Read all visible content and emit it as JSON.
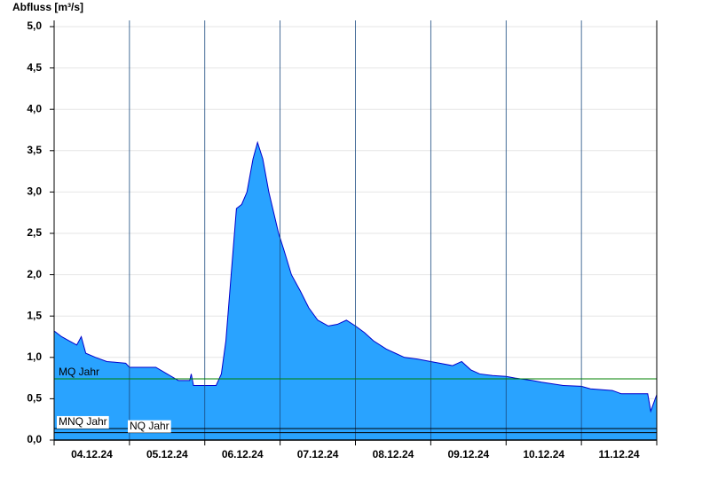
{
  "chart_data": {
    "type": "area",
    "y_label": "Abfluss [m³/s]",
    "x": [
      0,
      0.1,
      0.2,
      0.3,
      0.36,
      0.42,
      0.55,
      0.7,
      0.95,
      1.0,
      1.35,
      1.5,
      1.65,
      1.8,
      1.82,
      1.85,
      2.0,
      2.15,
      2.22,
      2.28,
      2.35,
      2.42,
      2.49,
      2.56,
      2.64,
      2.7,
      2.77,
      2.85,
      2.98,
      3.05,
      3.15,
      3.27,
      3.38,
      3.5,
      3.64,
      3.76,
      3.88,
      4.0,
      4.12,
      4.24,
      4.41,
      4.53,
      4.65,
      4.82,
      5.0,
      5.12,
      5.29,
      5.41,
      5.53,
      5.65,
      5.82,
      6.0,
      6.12,
      6.35,
      6.47,
      6.76,
      7.0,
      7.12,
      7.41,
      7.53,
      7.82,
      7.88,
      7.92,
      8.0
    ],
    "values": [
      1.32,
      1.25,
      1.2,
      1.15,
      1.25,
      1.05,
      1.0,
      0.95,
      0.93,
      0.88,
      0.88,
      0.8,
      0.72,
      0.72,
      0.8,
      0.66,
      0.66,
      0.66,
      0.8,
      1.2,
      2.0,
      2.8,
      2.85,
      3.0,
      3.4,
      3.6,
      3.4,
      3.0,
      2.5,
      2.3,
      2.0,
      1.8,
      1.6,
      1.45,
      1.38,
      1.4,
      1.45,
      1.38,
      1.3,
      1.2,
      1.1,
      1.05,
      1.0,
      0.98,
      0.95,
      0.93,
      0.9,
      0.95,
      0.85,
      0.8,
      0.78,
      0.77,
      0.75,
      0.72,
      0.7,
      0.66,
      0.65,
      0.62,
      0.6,
      0.56,
      0.56,
      0.56,
      0.35,
      0.55
    ],
    "color": "#29a3ff",
    "line_color": "#0000cc",
    "xlim": [
      0,
      8
    ],
    "xticks": [
      {
        "value": 0.5,
        "label": "04.12.24"
      },
      {
        "value": 1.5,
        "label": "05.12.24"
      },
      {
        "value": 2.5,
        "label": "06.12.24"
      },
      {
        "value": 3.5,
        "label": "07.12.24"
      },
      {
        "value": 4.5,
        "label": "08.12.24"
      },
      {
        "value": 5.5,
        "label": "09.12.24"
      },
      {
        "value": 6.5,
        "label": "10.12.24"
      },
      {
        "value": 7.5,
        "label": "11.12.24"
      }
    ],
    "ylim": [
      0,
      5
    ],
    "yticks": [
      {
        "value": 0,
        "label": "0,0"
      },
      {
        "value": 0.5,
        "label": "0,5"
      },
      {
        "value": 1,
        "label": "1,0"
      },
      {
        "value": 1.5,
        "label": "1,5"
      },
      {
        "value": 2,
        "label": "2,0"
      },
      {
        "value": 2.5,
        "label": "2,5"
      },
      {
        "value": 3,
        "label": "3,0"
      },
      {
        "value": 3.5,
        "label": "3,5"
      },
      {
        "value": 4,
        "label": "4,0"
      },
      {
        "value": 4.5,
        "label": "4,5"
      },
      {
        "value": 5,
        "label": "5,0"
      }
    ],
    "grid": true,
    "reference_lines": [
      {
        "label": "MQ Jahr",
        "value": 0.74,
        "color": "#008000"
      },
      {
        "label": "MNQ Jahr",
        "value": 0.14,
        "color": "#000000"
      },
      {
        "label": "NQ Jahr",
        "value": 0.09,
        "color": "#000000"
      }
    ]
  }
}
